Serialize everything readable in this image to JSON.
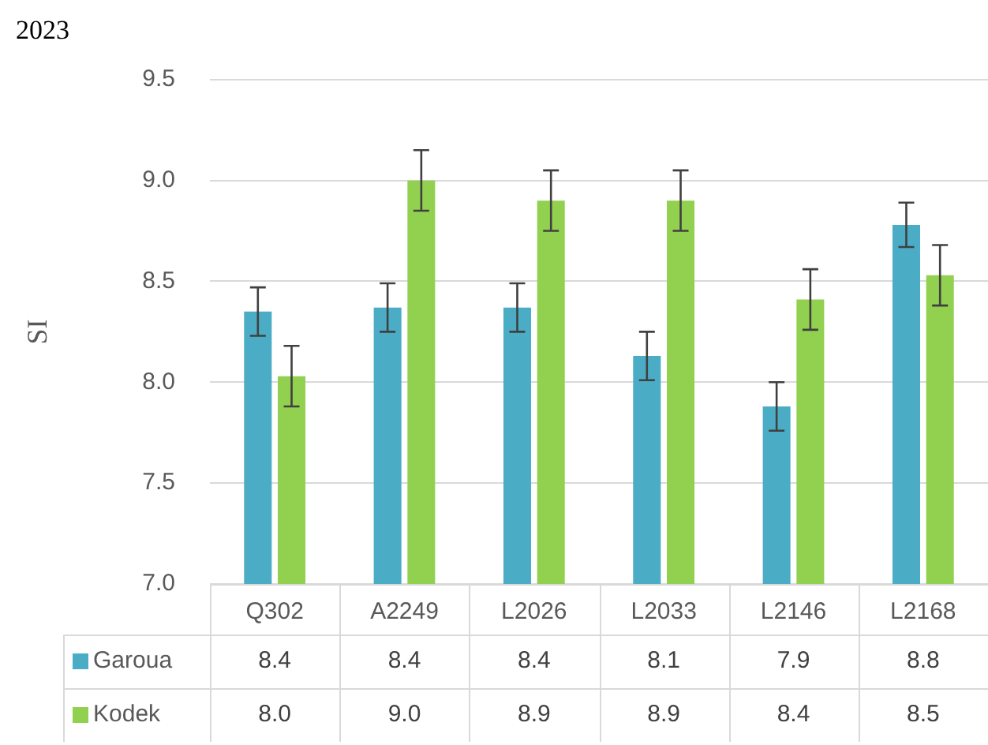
{
  "chart_data": {
    "type": "bar",
    "title": "2023",
    "ylabel": "SI",
    "categories": [
      "Q302",
      "A2249",
      "L2026",
      "L2033",
      "L2146",
      "L2168"
    ],
    "series": [
      {
        "name": "Garoua",
        "color": "#4bacc6",
        "values": [
          8.35,
          8.37,
          8.37,
          8.13,
          7.88,
          8.78
        ],
        "errors": [
          0.12,
          0.12,
          0.12,
          0.12,
          0.12,
          0.11
        ],
        "value_labels": [
          "8.4",
          "8.4",
          "8.4",
          "8.1",
          "7.9",
          "8.8"
        ]
      },
      {
        "name": "Kodek",
        "color": "#92d050",
        "values": [
          8.03,
          9.0,
          8.9,
          8.9,
          8.41,
          8.53
        ],
        "errors": [
          0.15,
          0.15,
          0.15,
          0.15,
          0.15,
          0.15
        ],
        "value_labels": [
          "8.0",
          "9.0",
          "8.9",
          "8.9",
          "8.4",
          "8.5"
        ]
      }
    ],
    "ylim": [
      7.0,
      9.5
    ],
    "yticks": [
      {
        "value": 7.0,
        "label": "7.0"
      },
      {
        "value": 7.5,
        "label": "7.5"
      },
      {
        "value": 8.0,
        "label": "8.0"
      },
      {
        "value": 8.5,
        "label": "8.5"
      },
      {
        "value": 9.0,
        "label": "9.0"
      },
      {
        "value": 9.5,
        "label": "9.5"
      }
    ],
    "grid": "y",
    "legend": "bottom"
  }
}
